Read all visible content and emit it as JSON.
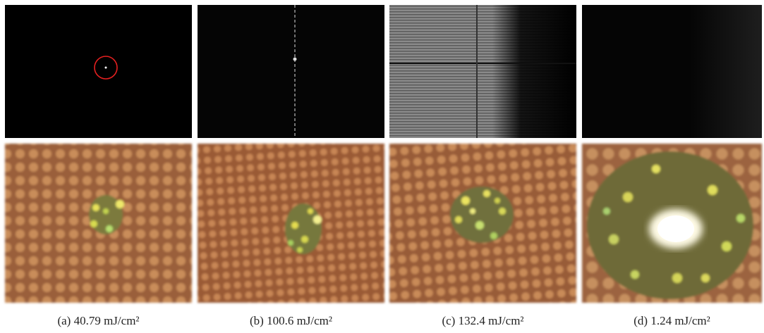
{
  "figure": {
    "captions": [
      "(a) 40.79 mJ/cm²",
      "(b) 100.6 mJ/cm²",
      "(c) 132.4 mJ/cm²",
      "(d) 1.24 mJ/cm²"
    ]
  }
}
